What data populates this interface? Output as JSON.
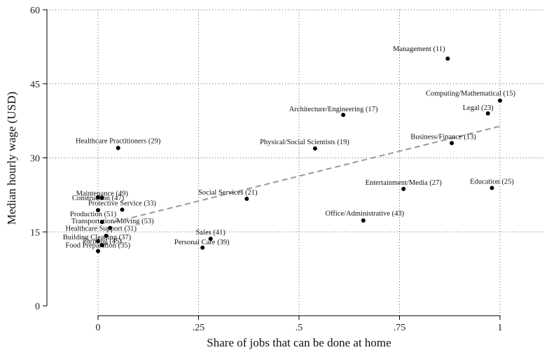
{
  "chart_data": {
    "type": "scatter",
    "xlabel": "Share of jobs that can be done at home",
    "ylabel": "Median hourly wage (USD)",
    "xlim": [
      -0.13,
      1.07
    ],
    "ylim": [
      0,
      60
    ],
    "x_ticks": [
      {
        "value": 0,
        "label": "0"
      },
      {
        "value": 0.25,
        "label": ".25"
      },
      {
        "value": 0.5,
        "label": ".5"
      },
      {
        "value": 0.75,
        "label": ".75"
      },
      {
        "value": 1,
        "label": "1"
      }
    ],
    "y_ticks": [
      {
        "value": 0,
        "label": "0"
      },
      {
        "value": 15,
        "label": "15"
      },
      {
        "value": 30,
        "label": "30"
      },
      {
        "value": 45,
        "label": "45"
      },
      {
        "value": 60,
        "label": "60"
      }
    ],
    "grid": {
      "x": true,
      "y": true
    },
    "fit_line": {
      "x": [
        0.04,
        1.0
      ],
      "y": [
        17.0,
        36.4
      ],
      "style": "dashed"
    },
    "points": [
      {
        "label": "Management (11)",
        "x": 0.87,
        "y": 50.1
      },
      {
        "label": "Computing/Mathematical (15)",
        "x": 1.0,
        "y": 41.6
      },
      {
        "label": "Legal (23)",
        "x": 0.97,
        "y": 39.0
      },
      {
        "label": "Architecture/Engineering (17)",
        "x": 0.61,
        "y": 38.7
      },
      {
        "label": "Business/Finance (13)",
        "x": 0.88,
        "y": 33.0
      },
      {
        "label": "Physical/Social Scientists (19)",
        "x": 0.54,
        "y": 31.9
      },
      {
        "label": "Healthcare Practitioners (29)",
        "x": 0.05,
        "y": 32.0
      },
      {
        "label": "Entertainment/Media (27)",
        "x": 0.76,
        "y": 23.7
      },
      {
        "label": "Education (25)",
        "x": 0.98,
        "y": 23.9
      },
      {
        "label": "Social Services (21)",
        "x": 0.37,
        "y": 21.7
      },
      {
        "label": "Office/Administrative (43)",
        "x": 0.66,
        "y": 17.3
      },
      {
        "label": "Construction (47)",
        "x": 0.0,
        "y": 22.0
      },
      {
        "label": "Maintenance (49)",
        "x": 0.01,
        "y": 21.9
      },
      {
        "label": "Protective Service (33)",
        "x": 0.06,
        "y": 19.5
      },
      {
        "label": "Production (51)",
        "x": 0.0,
        "y": 19.4
      },
      {
        "label": "Transportation/Moving (53)",
        "x": 0.01,
        "y": 17.0
      },
      {
        "label": "Healthcare Support (31)",
        "x": 0.03,
        "y": 15.8
      },
      {
        "label": "Building Cleaning (37)",
        "x": 0.02,
        "y": 14.2
      },
      {
        "label": "Farming (45)",
        "x": 0.0,
        "y": 13.1
      },
      {
        "label": "Food Preparation (35)",
        "x": 0.01,
        "y": 12.3
      },
      {
        "label": "Sales (41)",
        "x": 0.28,
        "y": 13.6
      },
      {
        "label": "Personal Care (39)",
        "x": 0.26,
        "y": 11.8
      },
      {
        "label": "",
        "x": 0.0,
        "y": 11.1
      }
    ]
  }
}
